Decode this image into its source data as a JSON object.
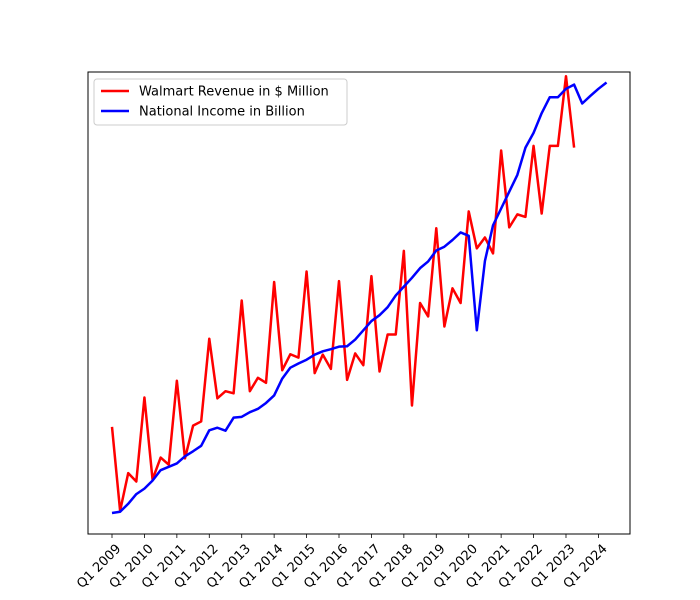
{
  "chart_data": {
    "type": "line",
    "title": "",
    "xlabel": "",
    "ylabel": "",
    "x_tick_labels": [
      "Q1 2009",
      "Q1 2010",
      "Q1 2011",
      "Q1 2012",
      "Q1 2013",
      "Q1 2014",
      "Q1 2015",
      "Q1 2016",
      "Q1 2017",
      "Q1 2018",
      "Q1 2019",
      "Q1 2020",
      "Q1 2021",
      "Q1 2022",
      "Q1 2023",
      "Q1 2024"
    ],
    "y_ticks_shown": false,
    "grid": false,
    "legend_position": "top-left",
    "series": [
      {
        "name": "Walmart Revenue in $ Million",
        "color": "#ff0000",
        "x": [
          "Q1 2009",
          "Q2 2009",
          "Q3 2009",
          "Q4 2009",
          "Q1 2010",
          "Q2 2010",
          "Q3 2010",
          "Q4 2010",
          "Q1 2011",
          "Q2 2011",
          "Q3 2011",
          "Q4 2011",
          "Q1 2012",
          "Q2 2012",
          "Q3 2012",
          "Q4 2012",
          "Q1 2013",
          "Q2 2013",
          "Q3 2013",
          "Q4 2013",
          "Q1 2014",
          "Q2 2014",
          "Q3 2014",
          "Q4 2014",
          "Q1 2015",
          "Q2 2015",
          "Q3 2015",
          "Q4 2015",
          "Q1 2016",
          "Q2 2016",
          "Q3 2016",
          "Q4 2016",
          "Q1 2017",
          "Q2 2017",
          "Q3 2017",
          "Q4 2017",
          "Q1 2018",
          "Q2 2018",
          "Q3 2018",
          "Q4 2018",
          "Q1 2019",
          "Q2 2019",
          "Q3 2019",
          "Q4 2019",
          "Q1 2020",
          "Q2 2020",
          "Q3 2020",
          "Q4 2020",
          "Q1 2021",
          "Q2 2021",
          "Q3 2021",
          "Q4 2021",
          "Q1 2022",
          "Q2 2022",
          "Q3 2022",
          "Q4 2022",
          "Q1 2023",
          "Q2 2023"
        ],
        "y": [
          0.205,
          0.005,
          0.095,
          0.075,
          0.275,
          0.08,
          0.132,
          0.115,
          0.315,
          0.13,
          0.208,
          0.218,
          0.415,
          0.273,
          0.29,
          0.285,
          0.506,
          0.29,
          0.322,
          0.31,
          0.55,
          0.34,
          0.378,
          0.37,
          0.575,
          0.333,
          0.377,
          0.343,
          0.552,
          0.317,
          0.38,
          0.352,
          0.564,
          0.337,
          0.425,
          0.425,
          0.624,
          0.256,
          0.5,
          0.468,
          0.678,
          0.444,
          0.535,
          0.5,
          0.718,
          0.63,
          0.656,
          0.618,
          0.863,
          0.68,
          0.711,
          0.705,
          0.874,
          0.713,
          0.874,
          0.874,
          1.04,
          0.87
        ]
      },
      {
        "name": "National Income in Billion",
        "color": "#0000ff",
        "x": [
          "Q1 2009",
          "Q2 2009",
          "Q3 2009",
          "Q4 2009",
          "Q1 2010",
          "Q2 2010",
          "Q3 2010",
          "Q4 2010",
          "Q1 2011",
          "Q2 2011",
          "Q3 2011",
          "Q4 2011",
          "Q1 2012",
          "Q2 2012",
          "Q3 2012",
          "Q4 2012",
          "Q1 2013",
          "Q2 2013",
          "Q3 2013",
          "Q4 2013",
          "Q1 2014",
          "Q2 2014",
          "Q3 2014",
          "Q4 2014",
          "Q1 2015",
          "Q2 2015",
          "Q3 2015",
          "Q4 2015",
          "Q1 2016",
          "Q2 2016",
          "Q3 2016",
          "Q4 2016",
          "Q1 2017",
          "Q2 2017",
          "Q3 2017",
          "Q4 2017",
          "Q1 2018",
          "Q2 2018",
          "Q3 2018",
          "Q4 2018",
          "Q1 2019",
          "Q2 2019",
          "Q3 2019",
          "Q4 2019",
          "Q1 2020",
          "Q2 2020",
          "Q3 2020",
          "Q4 2020",
          "Q1 2021",
          "Q2 2021",
          "Q3 2021",
          "Q4 2021",
          "Q1 2022",
          "Q2 2022",
          "Q3 2022",
          "Q4 2022",
          "Q1 2023",
          "Q2 2023",
          "Q3 2023",
          "Q4 2023",
          "Q1 2024",
          "Q2 2024"
        ],
        "y": [
          0.0,
          0.003,
          0.022,
          0.045,
          0.058,
          0.077,
          0.102,
          0.11,
          0.118,
          0.135,
          0.147,
          0.16,
          0.197,
          0.203,
          0.196,
          0.227,
          0.229,
          0.24,
          0.248,
          0.262,
          0.28,
          0.32,
          0.346,
          0.356,
          0.365,
          0.377,
          0.385,
          0.39,
          0.396,
          0.397,
          0.413,
          0.435,
          0.457,
          0.471,
          0.49,
          0.518,
          0.539,
          0.56,
          0.583,
          0.599,
          0.625,
          0.634,
          0.65,
          0.668,
          0.66,
          0.435,
          0.6,
          0.685,
          0.725,
          0.765,
          0.805,
          0.87,
          0.905,
          0.952,
          0.99,
          0.99,
          1.01,
          1.02,
          0.975,
          0.993,
          1.01,
          1.025
        ]
      }
    ]
  }
}
